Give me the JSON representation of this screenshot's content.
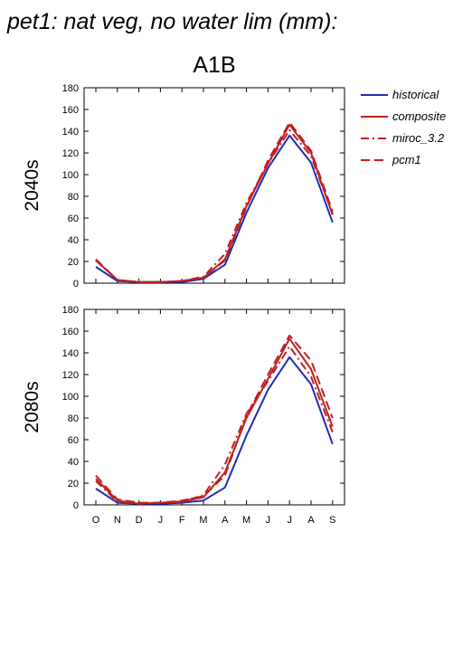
{
  "title": "pet1: nat veg, no water lim (mm):",
  "scenario": "A1B",
  "legend": [
    {
      "key": "historical",
      "label": "historical"
    },
    {
      "key": "composite",
      "label": "composite"
    },
    {
      "key": "miroc",
      "label": "miroc_3.2"
    },
    {
      "key": "pcm1",
      "label": "pcm1"
    }
  ],
  "colors": {
    "historical": "#1f2bb8",
    "composite": "#c02020",
    "miroc": "#c02020",
    "pcm1": "#c02020"
  },
  "chart_data": [
    {
      "type": "line",
      "panel": "2040s",
      "categories": [
        "O",
        "N",
        "D",
        "J",
        "F",
        "M",
        "A",
        "M",
        "J",
        "J",
        "A",
        "S"
      ],
      "ylim": [
        0,
        180
      ],
      "yticks": [
        0,
        20,
        40,
        60,
        80,
        100,
        120,
        140,
        160,
        180
      ],
      "series": [
        {
          "name": "historical",
          "values": [
            15,
            2,
            1,
            1,
            1,
            4,
            17,
            65,
            106,
            136,
            111,
            56
          ]
        },
        {
          "name": "composite",
          "values": [
            21,
            3,
            1,
            1,
            2,
            5,
            22,
            71,
            110,
            146,
            120,
            63
          ]
        },
        {
          "name": "miroc_3.2",
          "values": [
            21,
            3,
            1,
            1,
            2,
            6,
            27,
            74,
            110,
            141,
            117,
            64
          ]
        },
        {
          "name": "pcm1",
          "values": [
            22,
            3,
            1,
            1,
            2,
            5,
            21,
            70,
            113,
            148,
            122,
            66
          ]
        }
      ]
    },
    {
      "type": "line",
      "panel": "2080s",
      "categories": [
        "O",
        "N",
        "D",
        "J",
        "F",
        "M",
        "A",
        "M",
        "J",
        "J",
        "A",
        "S"
      ],
      "ylim": [
        0,
        180
      ],
      "yticks": [
        0,
        20,
        40,
        60,
        80,
        100,
        120,
        140,
        160,
        180
      ],
      "series": [
        {
          "name": "historical",
          "values": [
            15,
            2,
            1,
            1,
            2,
            4,
            16,
            64,
            106,
            136,
            111,
            56
          ]
        },
        {
          "name": "composite",
          "values": [
            24,
            4,
            1,
            2,
            3,
            7,
            30,
            80,
            116,
            153,
            125,
            72
          ]
        },
        {
          "name": "miroc_3.2",
          "values": [
            22,
            3,
            1,
            2,
            3,
            9,
            37,
            84,
            114,
            146,
            118,
            67
          ]
        },
        {
          "name": "pcm1",
          "values": [
            27,
            5,
            2,
            2,
            4,
            8,
            27,
            82,
            120,
            156,
            133,
            80
          ]
        }
      ]
    }
  ]
}
